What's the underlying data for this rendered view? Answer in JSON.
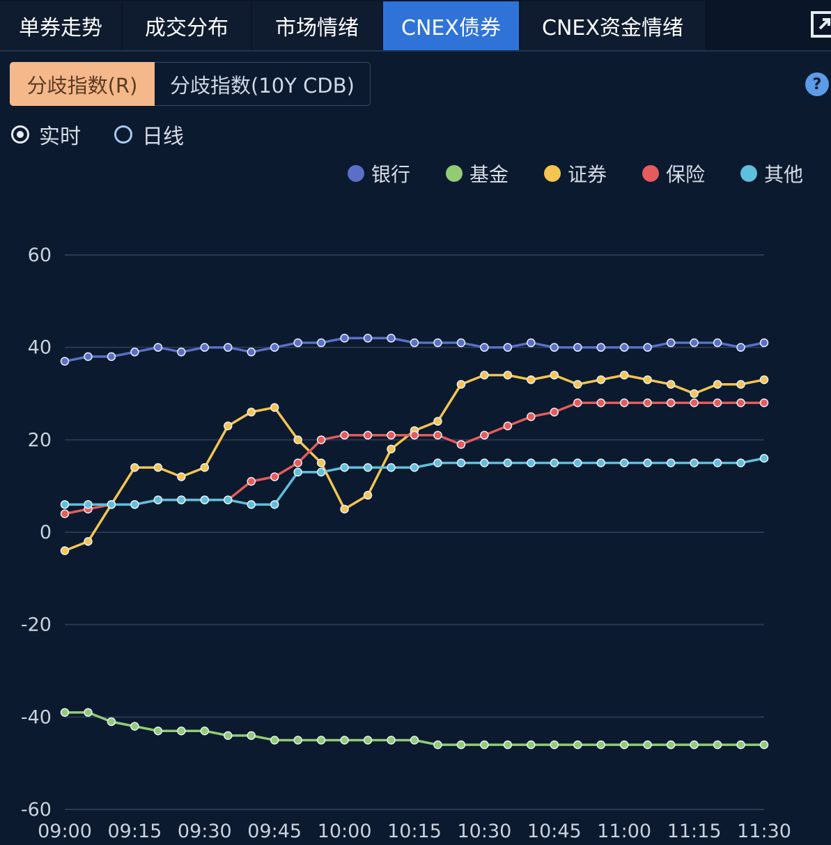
{
  "tabs": [
    {
      "label": "单券走势",
      "active": false
    },
    {
      "label": "成交分布",
      "active": false
    },
    {
      "label": "市场情绪",
      "active": false
    },
    {
      "label": "CNEX债券",
      "active": true
    },
    {
      "label": "CNEX资金情绪",
      "active": false
    }
  ],
  "expand_icon": "expand-icon",
  "segments": [
    {
      "label": "分歧指数(R)",
      "selected": true
    },
    {
      "label": "分歧指数(10Y CDB)",
      "selected": false
    }
  ],
  "help_icon": {
    "name": "help-icon",
    "glyph": "?"
  },
  "radios": [
    {
      "label": "实时",
      "checked": true
    },
    {
      "label": "日线",
      "checked": false
    }
  ],
  "colors": {
    "bank": "#5b6fc9",
    "fund": "#91cc75",
    "securities": "#f5c451",
    "insurance": "#e65b5b",
    "other": "#5fbfdc",
    "grid": "#2a3852",
    "axis_text": "#c9d2de",
    "tab_active": "#2f73d9",
    "segment_selected": "#f5b88a"
  },
  "chart_data": {
    "type": "line",
    "x": [
      "09:00",
      "09:05",
      "09:10",
      "09:15",
      "09:20",
      "09:25",
      "09:30",
      "09:35",
      "09:40",
      "09:45",
      "09:50",
      "09:55",
      "10:00",
      "10:05",
      "10:10",
      "10:15",
      "10:20",
      "10:25",
      "10:30",
      "10:35",
      "10:40",
      "10:45",
      "10:50",
      "10:55",
      "11:00",
      "11:05",
      "11:10",
      "11:15",
      "11:20",
      "11:25",
      "11:30"
    ],
    "xticks": [
      "09:00",
      "09:15",
      "09:30",
      "09:45",
      "10:00",
      "10:15",
      "10:30",
      "10:45",
      "11:00",
      "11:15",
      "11:30"
    ],
    "yticks": [
      60,
      40,
      20,
      0,
      -20,
      -40,
      -60
    ],
    "ylim": [
      -60,
      60
    ],
    "grid": true,
    "legend_position": "top-right",
    "series": [
      {
        "name": "银行",
        "color": "#5b6fc9",
        "values": [
          37,
          38,
          38,
          39,
          40,
          39,
          40,
          40,
          39,
          40,
          41,
          41,
          42,
          42,
          42,
          41,
          41,
          41,
          40,
          40,
          41,
          40,
          40,
          40,
          40,
          40,
          41,
          41,
          41,
          40,
          41
        ]
      },
      {
        "name": "基金",
        "color": "#91cc75",
        "values": [
          -39,
          -39,
          -41,
          -42,
          -43,
          -43,
          -43,
          -44,
          -44,
          -45,
          -45,
          -45,
          -45,
          -45,
          -45,
          -45,
          -46,
          -46,
          -46,
          -46,
          -46,
          -46,
          -46,
          -46,
          -46,
          -46,
          -46,
          -46,
          -46,
          -46,
          -46
        ]
      },
      {
        "name": "证券",
        "color": "#f5c451",
        "values": [
          -4,
          -2,
          6,
          14,
          14,
          12,
          14,
          23,
          26,
          27,
          20,
          15,
          5,
          8,
          18,
          22,
          24,
          32,
          34,
          34,
          33,
          34,
          32,
          33,
          34,
          33,
          32,
          30,
          32,
          32,
          33
        ]
      },
      {
        "name": "保险",
        "color": "#e65b5b",
        "values": [
          4,
          5,
          6,
          6,
          7,
          7,
          7,
          7,
          11,
          12,
          15,
          20,
          21,
          21,
          21,
          21,
          21,
          19,
          21,
          23,
          25,
          26,
          28,
          28,
          28,
          28,
          28,
          28,
          28,
          28,
          28
        ]
      },
      {
        "name": "其他",
        "color": "#5fbfdc",
        "values": [
          6,
          6,
          6,
          6,
          7,
          7,
          7,
          7,
          6,
          6,
          13,
          13,
          14,
          14,
          14,
          14,
          15,
          15,
          15,
          15,
          15,
          15,
          15,
          15,
          15,
          15,
          15,
          15,
          15,
          15,
          16
        ]
      }
    ]
  }
}
